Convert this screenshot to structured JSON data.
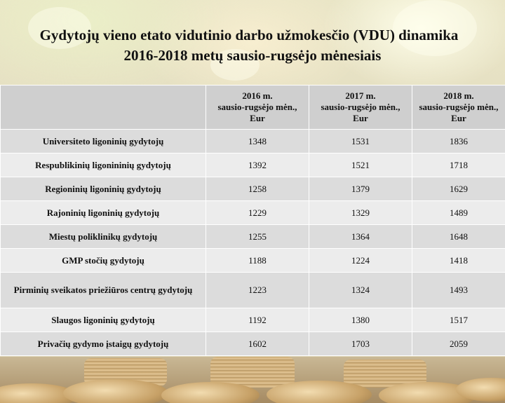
{
  "title": {
    "line1": "Gydytojų vieno etato vidutinio darbo užmokesčio (VDU) dinamika",
    "line2": "2016-2018 metų sausio-rugsėjo mėnesiais"
  },
  "table": {
    "headers": [
      {
        "year": "",
        "period": "",
        "unit": ""
      },
      {
        "year": "2016 m.",
        "period": "sausio-rugsėjo mėn.,",
        "unit": "Eur"
      },
      {
        "year": "2017 m.",
        "period": "sausio-rugsėjo mėn.,",
        "unit": "Eur"
      },
      {
        "year": "2018 m.",
        "period": "sausio-rugsėjo mėn.,",
        "unit": "Eur"
      }
    ],
    "rows": [
      {
        "label": "Universiteto ligoninių  gydytojų",
        "v2016": "1348",
        "v2017": "1531",
        "v2018": "1836"
      },
      {
        "label": "Respublikinių ligonininių gydytojų",
        "v2016": "1392",
        "v2017": "1521",
        "v2018": "1718"
      },
      {
        "label": "Regioninių ligoninių gydytojų",
        "v2016": "1258",
        "v2017": "1379",
        "v2018": "1629"
      },
      {
        "label": "Rajoninių ligoninių gydytojų",
        "v2016": "1229",
        "v2017": "1329",
        "v2018": "1489"
      },
      {
        "label": "Miestų poliklinikų gydytojų",
        "v2016": "1255",
        "v2017": "1364",
        "v2018": "1648"
      },
      {
        "label": "GMP stočių gydytojų",
        "v2016": "1188",
        "v2017": "1224",
        "v2018": "1418"
      },
      {
        "label": "Pirminių sveikatos priežiūros centrų gydytojų",
        "v2016": "1223",
        "v2017": "1324",
        "v2018": "1493"
      },
      {
        "label": "Slaugos ligoninių gydytojų",
        "v2016": "1192",
        "v2017": "1380",
        "v2018": "1517"
      },
      {
        "label": "Privačių gydymo įstaigų gydytojų",
        "v2016": "1602",
        "v2017": "1703",
        "v2018": "2059"
      }
    ]
  }
}
